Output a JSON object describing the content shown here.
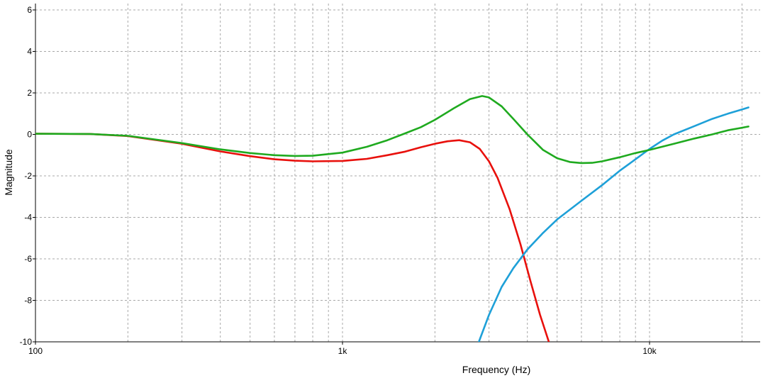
{
  "chart_data": {
    "type": "line",
    "title": "",
    "xlabel": "Frequency (Hz)",
    "ylabel": "Magnitude",
    "x_scale": "log",
    "xlim": [
      100,
      23500
    ],
    "ylim": [
      -10,
      6
    ],
    "x_ticks": [
      {
        "value": 100,
        "label": "100"
      },
      {
        "value": 1000,
        "label": "1k"
      },
      {
        "value": 10000,
        "label": "10k"
      }
    ],
    "y_ticks": [
      {
        "value": 6,
        "label": "6"
      },
      {
        "value": 4,
        "label": "4"
      },
      {
        "value": 2,
        "label": "2"
      },
      {
        "value": 0,
        "label": "0"
      },
      {
        "value": -2,
        "label": "-2"
      },
      {
        "value": -4,
        "label": "-4"
      },
      {
        "value": -6,
        "label": "-6"
      },
      {
        "value": -8,
        "label": "-8"
      },
      {
        "value": -10,
        "label": "-10"
      }
    ],
    "grid": true,
    "series": [
      {
        "color": "#e8100c",
        "points": [
          [
            100,
            0.03
          ],
          [
            150,
            0.02
          ],
          [
            200,
            -0.08
          ],
          [
            300,
            -0.45
          ],
          [
            400,
            -0.82
          ],
          [
            500,
            -1.05
          ],
          [
            600,
            -1.2
          ],
          [
            700,
            -1.27
          ],
          [
            800,
            -1.3
          ],
          [
            1000,
            -1.28
          ],
          [
            1200,
            -1.18
          ],
          [
            1400,
            -1.0
          ],
          [
            1600,
            -0.83
          ],
          [
            1800,
            -0.62
          ],
          [
            2000,
            -0.45
          ],
          [
            2200,
            -0.33
          ],
          [
            2400,
            -0.28
          ],
          [
            2600,
            -0.38
          ],
          [
            2800,
            -0.7
          ],
          [
            3000,
            -1.3
          ],
          [
            3200,
            -2.1
          ],
          [
            3500,
            -3.6
          ],
          [
            3800,
            -5.3
          ],
          [
            4100,
            -7.1
          ],
          [
            4400,
            -8.7
          ],
          [
            4700,
            -10.0
          ]
        ]
      },
      {
        "color": "#1ea0d8",
        "points": [
          [
            2780,
            -10.0
          ],
          [
            3000,
            -8.7
          ],
          [
            3300,
            -7.35
          ],
          [
            3600,
            -6.45
          ],
          [
            4000,
            -5.55
          ],
          [
            4500,
            -4.75
          ],
          [
            5000,
            -4.1
          ],
          [
            6000,
            -3.2
          ],
          [
            7000,
            -2.45
          ],
          [
            8000,
            -1.75
          ],
          [
            9000,
            -1.2
          ],
          [
            10000,
            -0.7
          ],
          [
            11000,
            -0.3
          ],
          [
            12000,
            0.0
          ],
          [
            14000,
            0.4
          ],
          [
            16000,
            0.75
          ],
          [
            18000,
            1.0
          ],
          [
            20000,
            1.2
          ],
          [
            21000,
            1.3
          ]
        ]
      },
      {
        "color": "#1faa1f",
        "points": [
          [
            100,
            0.03
          ],
          [
            150,
            0.02
          ],
          [
            200,
            -0.07
          ],
          [
            300,
            -0.42
          ],
          [
            400,
            -0.72
          ],
          [
            500,
            -0.9
          ],
          [
            600,
            -1.0
          ],
          [
            700,
            -1.04
          ],
          [
            800,
            -1.03
          ],
          [
            1000,
            -0.88
          ],
          [
            1200,
            -0.6
          ],
          [
            1400,
            -0.28
          ],
          [
            1600,
            0.05
          ],
          [
            1800,
            0.35
          ],
          [
            2000,
            0.7
          ],
          [
            2300,
            1.25
          ],
          [
            2600,
            1.7
          ],
          [
            2850,
            1.85
          ],
          [
            3000,
            1.78
          ],
          [
            3300,
            1.35
          ],
          [
            3600,
            0.75
          ],
          [
            4000,
            0.0
          ],
          [
            4500,
            -0.75
          ],
          [
            5000,
            -1.15
          ],
          [
            5500,
            -1.33
          ],
          [
            6000,
            -1.38
          ],
          [
            6500,
            -1.37
          ],
          [
            7000,
            -1.3
          ],
          [
            8000,
            -1.1
          ],
          [
            9000,
            -0.9
          ],
          [
            10000,
            -0.75
          ],
          [
            12000,
            -0.45
          ],
          [
            14000,
            -0.2
          ],
          [
            16000,
            0.0
          ],
          [
            18000,
            0.2
          ],
          [
            20000,
            0.32
          ],
          [
            21000,
            0.38
          ]
        ]
      }
    ]
  }
}
